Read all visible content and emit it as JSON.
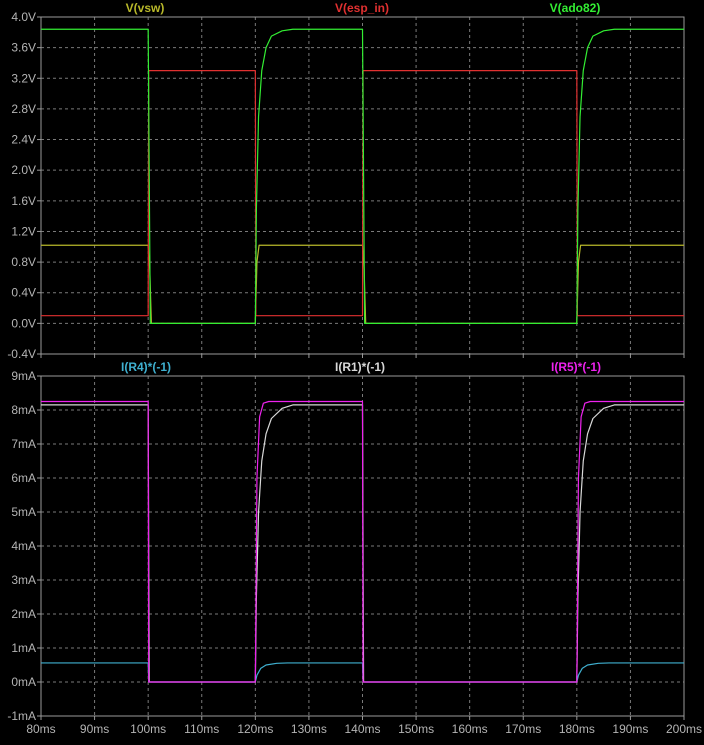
{
  "colors": {
    "background": "#000000",
    "frame": "#9a9a9a",
    "grid": "#7a7a7a",
    "tick_text": "#b4b4b4"
  },
  "chart_data": [
    {
      "type": "line",
      "series": [
        {
          "name": "V(vsw)",
          "color": "#b8b82a",
          "points": [
            [
              80,
              1.02
            ],
            [
              100,
              1.02
            ],
            [
              100.3,
              0.7
            ],
            [
              100.6,
              0.0
            ],
            [
              120,
              0.0
            ],
            [
              120.3,
              0.8
            ],
            [
              120.7,
              1.02
            ],
            [
              140,
              1.02
            ],
            [
              140.3,
              0.7
            ],
            [
              140.6,
              0.0
            ],
            [
              180,
              0.0
            ],
            [
              180.3,
              0.8
            ],
            [
              180.7,
              1.02
            ],
            [
              200,
              1.02
            ]
          ]
        },
        {
          "name": "V(esp_in)",
          "color": "#e03030",
          "points": [
            [
              80,
              0.1
            ],
            [
              100,
              0.1
            ],
            [
              100.1,
              3.3
            ],
            [
              120,
              3.3
            ],
            [
              120.1,
              0.1
            ],
            [
              140,
              0.1
            ],
            [
              140.1,
              3.3
            ],
            [
              180,
              3.3
            ],
            [
              180.1,
              0.1
            ],
            [
              200,
              0.1
            ]
          ]
        },
        {
          "name": "V(ado82)",
          "color": "#33ee33",
          "points": [
            [
              80,
              3.84
            ],
            [
              100,
              3.84
            ],
            [
              100.4,
              0.0
            ],
            [
              120,
              0.0
            ],
            [
              120.2,
              1.5
            ],
            [
              120.6,
              2.7
            ],
            [
              121.2,
              3.3
            ],
            [
              122,
              3.6
            ],
            [
              123,
              3.75
            ],
            [
              125,
              3.82
            ],
            [
              127,
              3.84
            ],
            [
              140,
              3.84
            ],
            [
              140.4,
              0.0
            ],
            [
              180,
              0.0
            ],
            [
              180.2,
              1.5
            ],
            [
              180.6,
              2.7
            ],
            [
              181.2,
              3.3
            ],
            [
              182,
              3.6
            ],
            [
              183,
              3.75
            ],
            [
              185,
              3.82
            ],
            [
              187,
              3.84
            ],
            [
              200,
              3.84
            ]
          ]
        }
      ],
      "x": {
        "min": 80,
        "max": 200,
        "ticks": [
          80,
          90,
          100,
          110,
          120,
          130,
          140,
          150,
          160,
          170,
          180,
          190,
          200
        ]
      },
      "y": {
        "min": -0.4,
        "max": 4.0,
        "ticks": [
          -0.4,
          0.0,
          0.4,
          0.8,
          1.2,
          1.6,
          2.0,
          2.4,
          2.8,
          3.2,
          3.6,
          4.0
        ],
        "tick_labels": [
          "-0.4V",
          "0.0V",
          "0.4V",
          "0.8V",
          "1.2V",
          "1.6V",
          "2.0V",
          "2.4V",
          "2.8V",
          "3.2V",
          "3.6V",
          "4.0V"
        ]
      },
      "grid": true,
      "legend_placement": "top"
    },
    {
      "type": "line",
      "series": [
        {
          "name": "I(R4)*(-1)",
          "color": "#3fb0d0",
          "points": [
            [
              80,
              0.56
            ],
            [
              100,
              0.56
            ],
            [
              100.1,
              0.0
            ],
            [
              120,
              0.0
            ],
            [
              120.3,
              0.2
            ],
            [
              121,
              0.4
            ],
            [
              122,
              0.5
            ],
            [
              124,
              0.55
            ],
            [
              126,
              0.56
            ],
            [
              140,
              0.56
            ],
            [
              140.1,
              0.0
            ],
            [
              180,
              0.0
            ],
            [
              180.3,
              0.2
            ],
            [
              181,
              0.4
            ],
            [
              182,
              0.5
            ],
            [
              184,
              0.55
            ],
            [
              186,
              0.56
            ],
            [
              200,
              0.56
            ]
          ]
        },
        {
          "name": "I(R1)*(-1)",
          "color": "#d8d8d8",
          "points": [
            [
              80,
              8.15
            ],
            [
              100,
              8.15
            ],
            [
              100.2,
              0.0
            ],
            [
              120,
              0.0
            ],
            [
              120.2,
              2.5
            ],
            [
              120.6,
              5.0
            ],
            [
              121.2,
              6.5
            ],
            [
              122,
              7.3
            ],
            [
              123,
              7.75
            ],
            [
              125,
              8.05
            ],
            [
              127,
              8.15
            ],
            [
              140,
              8.15
            ],
            [
              140.2,
              0.0
            ],
            [
              180,
              0.0
            ],
            [
              180.2,
              2.5
            ],
            [
              180.6,
              5.0
            ],
            [
              181.2,
              6.5
            ],
            [
              182,
              7.3
            ],
            [
              183,
              7.75
            ],
            [
              185,
              8.05
            ],
            [
              187,
              8.15
            ],
            [
              200,
              8.15
            ]
          ]
        },
        {
          "name": "I(R5)*(-1)",
          "color": "#ee22ee",
          "points": [
            [
              80,
              8.25
            ],
            [
              100,
              8.25
            ],
            [
              100.1,
              0.0
            ],
            [
              120,
              0.0
            ],
            [
              120.3,
              6.0
            ],
            [
              120.8,
              7.8
            ],
            [
              121.5,
              8.2
            ],
            [
              122.5,
              8.25
            ],
            [
              140,
              8.25
            ],
            [
              140.1,
              0.0
            ],
            [
              180,
              0.0
            ],
            [
              180.3,
              6.0
            ],
            [
              180.8,
              7.8
            ],
            [
              181.5,
              8.2
            ],
            [
              182.5,
              8.25
            ],
            [
              200,
              8.25
            ]
          ]
        }
      ],
      "x": {
        "min": 80,
        "max": 200,
        "ticks": [
          80,
          90,
          100,
          110,
          120,
          130,
          140,
          150,
          160,
          170,
          180,
          190,
          200
        ],
        "tick_labels": [
          "80ms",
          "90ms",
          "100ms",
          "110ms",
          "120ms",
          "130ms",
          "140ms",
          "150ms",
          "160ms",
          "170ms",
          "180ms",
          "190ms",
          "200ms"
        ]
      },
      "y": {
        "min": -1,
        "max": 9,
        "ticks": [
          -1,
          0,
          1,
          2,
          3,
          4,
          5,
          6,
          7,
          8,
          9
        ],
        "tick_labels": [
          "-1mA",
          "0mA",
          "1mA",
          "2mA",
          "3mA",
          "4mA",
          "5mA",
          "6mA",
          "7mA",
          "8mA",
          "9mA"
        ]
      },
      "grid": true,
      "legend_placement": "top"
    }
  ]
}
